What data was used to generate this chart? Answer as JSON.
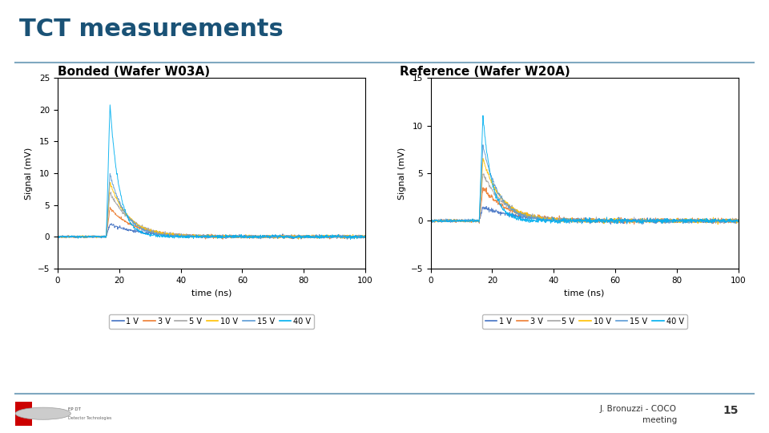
{
  "title": "TCT measurements",
  "title_color": "#1a5276",
  "title_fontsize": 22,
  "title_separator_color": "#7fa8c0",
  "left_subtitle": "Bonded (Wafer W03A)",
  "right_subtitle": "Reference (Wafer W20A)",
  "subtitle_fontsize": 11,
  "xlabel": "time (ns)",
  "ylabel": "Signal (mV)",
  "xlim": [
    0,
    100
  ],
  "left_ylim": [
    -5,
    25
  ],
  "right_ylim": [
    -5,
    15
  ],
  "left_yticks": [
    -5,
    0,
    5,
    10,
    15,
    20,
    25
  ],
  "right_yticks": [
    -5,
    0,
    5,
    10,
    15
  ],
  "xticks": [
    0,
    20,
    40,
    60,
    80,
    100
  ],
  "legend_labels": [
    "1 V",
    "3 V",
    "5 V",
    "10 V",
    "15 V",
    "40 V"
  ],
  "line_colors": [
    "#4472c4",
    "#ed7d31",
    "#a5a5a5",
    "#ffc000",
    "#5b9bd5",
    "#00b0f0"
  ],
  "footer_text": "J. Bronuzzi - COCO\nmeeting",
  "footer_number": "15",
  "background_color": "#ffffff",
  "peak_time": 17,
  "left_peaks": [
    2.0,
    4.5,
    7.0,
    8.5,
    10.0,
    21.0
  ],
  "right_peaks": [
    1.5,
    3.5,
    5.0,
    6.5,
    8.0,
    11.0
  ],
  "left_decays": [
    10,
    8,
    7,
    6,
    5,
    3
  ],
  "right_decays": [
    10,
    8,
    7,
    6,
    5,
    3
  ],
  "noise_amp": 0.12,
  "baseline": 0.0
}
